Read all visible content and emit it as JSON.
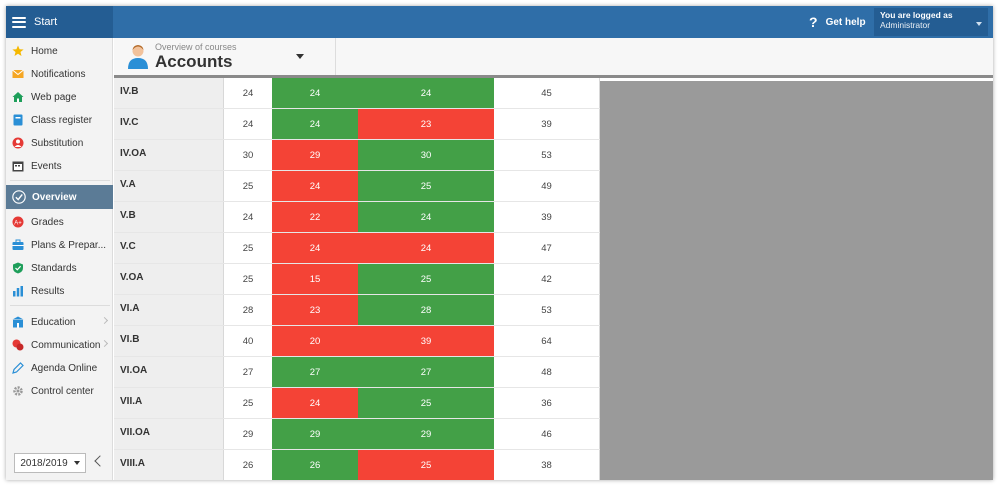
{
  "topbar": {
    "start_label": "Start",
    "help_label": "Get help",
    "user_line1": "You are logged as",
    "user_line2": "Administrator"
  },
  "sidebar": {
    "items": [
      {
        "label": "Home",
        "icon": "star-icon"
      },
      {
        "label": "Notifications",
        "icon": "envelope-icon"
      },
      {
        "label": "Web page",
        "icon": "house-icon"
      },
      {
        "label": "Class register",
        "icon": "book-icon"
      },
      {
        "label": "Substitution",
        "icon": "person-swap-icon"
      },
      {
        "label": "Events",
        "icon": "calendar-icon"
      },
      {
        "label": "Overview",
        "icon": "check-circle-icon"
      },
      {
        "label": "Grades",
        "icon": "grade-icon"
      },
      {
        "label": "Plans & Prepar...",
        "icon": "briefcase-icon"
      },
      {
        "label": "Standards",
        "icon": "shield-check-icon"
      },
      {
        "label": "Results",
        "icon": "bar-chart-icon"
      },
      {
        "label": "Education",
        "icon": "school-icon"
      },
      {
        "label": "Communication",
        "icon": "chat-icon"
      },
      {
        "label": "Agenda Online",
        "icon": "pen-icon"
      },
      {
        "label": "Control center",
        "icon": "gear-icon"
      }
    ],
    "year": "2018/2019"
  },
  "header": {
    "subtitle": "Overview of courses",
    "title": "Accounts"
  },
  "colors": {
    "topbar": "#2f6ea8",
    "green": "#43a047",
    "red": "#f44336",
    "active_nav": "#5b7b96"
  },
  "table": {
    "rows": [
      {
        "name": "IV.B",
        "c1": "24",
        "c2": "24",
        "c2s": "green",
        "c3": "24",
        "c3s": "green",
        "c4": "45"
      },
      {
        "name": "IV.C",
        "c1": "24",
        "c2": "24",
        "c2s": "green",
        "c3": "23",
        "c3s": "red",
        "c4": "39"
      },
      {
        "name": "IV.OA",
        "c1": "30",
        "c2": "29",
        "c2s": "red",
        "c3": "30",
        "c3s": "green",
        "c4": "53"
      },
      {
        "name": "V.A",
        "c1": "25",
        "c2": "24",
        "c2s": "red",
        "c3": "25",
        "c3s": "green",
        "c4": "49"
      },
      {
        "name": "V.B",
        "c1": "24",
        "c2": "22",
        "c2s": "red",
        "c3": "24",
        "c3s": "green",
        "c4": "39"
      },
      {
        "name": "V.C",
        "c1": "25",
        "c2": "24",
        "c2s": "red",
        "c3": "24",
        "c3s": "red",
        "c4": "47"
      },
      {
        "name": "V.OA",
        "c1": "25",
        "c2": "15",
        "c2s": "red",
        "c3": "25",
        "c3s": "green",
        "c4": "42"
      },
      {
        "name": "VI.A",
        "c1": "28",
        "c2": "23",
        "c2s": "red",
        "c3": "28",
        "c3s": "green",
        "c4": "53"
      },
      {
        "name": "VI.B",
        "c1": "40",
        "c2": "20",
        "c2s": "red",
        "c3": "39",
        "c3s": "red",
        "c4": "64"
      },
      {
        "name": "VI.OA",
        "c1": "27",
        "c2": "27",
        "c2s": "green",
        "c3": "27",
        "c3s": "green",
        "c4": "48"
      },
      {
        "name": "VII.A",
        "c1": "25",
        "c2": "24",
        "c2s": "red",
        "c3": "25",
        "c3s": "green",
        "c4": "36"
      },
      {
        "name": "VII.OA",
        "c1": "29",
        "c2": "29",
        "c2s": "green",
        "c3": "29",
        "c3s": "green",
        "c4": "46"
      },
      {
        "name": "VIII.A",
        "c1": "26",
        "c2": "26",
        "c2s": "green",
        "c3": "25",
        "c3s": "red",
        "c4": "38"
      }
    ]
  }
}
